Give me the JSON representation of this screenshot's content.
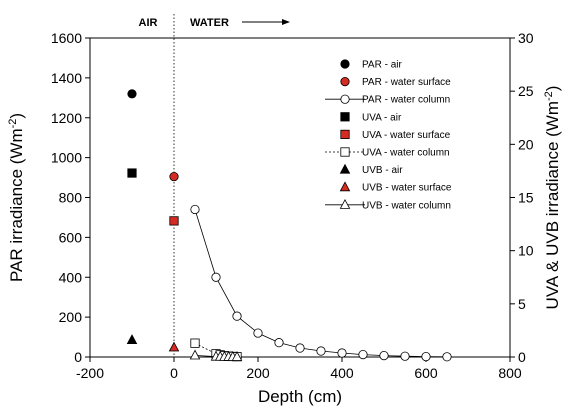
{
  "chart_data": {
    "type": "scatter",
    "xlabel": "Depth (cm)",
    "ylabel_left": "PAR irradiance (Wm-2)",
    "ylabel_right": "UVA & UVB irradiance (Wm-2)",
    "unit_superscript": "-2",
    "xlim": [
      -200,
      800
    ],
    "ylim_left": [
      0,
      1600
    ],
    "ylim_right": [
      0,
      30
    ],
    "x_ticks": [
      -200,
      0,
      200,
      400,
      600,
      800
    ],
    "y_ticks_left": [
      0,
      200,
      400,
      600,
      800,
      1000,
      1200,
      1400,
      1600
    ],
    "y_ticks_right": [
      0,
      5,
      10,
      15,
      20,
      25,
      30
    ],
    "region_labels": {
      "air": "AIR",
      "water": "WATER"
    },
    "water_surface_line_x": 0,
    "legend_position": "top-right",
    "grid": false,
    "colors": {
      "red": "#d42b23",
      "black": "#000000"
    },
    "series": [
      {
        "name": "PAR - air",
        "axis": "left",
        "marker": "circle",
        "fill": "black",
        "line": false,
        "points": [
          [
            -100,
            1320
          ]
        ]
      },
      {
        "name": "PAR - water surface",
        "axis": "left",
        "marker": "circle",
        "fill": "red",
        "line": false,
        "points": [
          [
            0,
            905
          ]
        ]
      },
      {
        "name": "PAR - water column",
        "axis": "left",
        "marker": "circle",
        "fill": "white",
        "line": true,
        "dashed": false,
        "points": [
          [
            50,
            740
          ],
          [
            100,
            400
          ],
          [
            150,
            205
          ],
          [
            200,
            120
          ],
          [
            250,
            72
          ],
          [
            300,
            45
          ],
          [
            350,
            30
          ],
          [
            400,
            20
          ],
          [
            450,
            12
          ],
          [
            500,
            7
          ],
          [
            550,
            4
          ],
          [
            600,
            2
          ],
          [
            650,
            1
          ]
        ]
      },
      {
        "name": "UVA - air",
        "axis": "right",
        "marker": "square",
        "fill": "black",
        "line": false,
        "points": [
          [
            -100,
            17.3
          ]
        ]
      },
      {
        "name": "UVA - water surface",
        "axis": "right",
        "marker": "square",
        "fill": "red",
        "line": false,
        "points": [
          [
            0,
            12.8
          ]
        ]
      },
      {
        "name": "UVA - water column",
        "axis": "right",
        "marker": "square",
        "fill": "white",
        "line": true,
        "dashed": true,
        "points": [
          [
            50,
            1.3
          ],
          [
            100,
            0.3
          ],
          [
            110,
            0.2
          ],
          [
            120,
            0.12
          ],
          [
            130,
            0.08
          ],
          [
            140,
            0.05
          ],
          [
            150,
            0.03
          ]
        ]
      },
      {
        "name": "UVB - air",
        "axis": "right",
        "marker": "triangle",
        "fill": "black",
        "line": false,
        "points": [
          [
            -100,
            1.6
          ]
        ]
      },
      {
        "name": "UVB - water surface",
        "axis": "right",
        "marker": "triangle",
        "fill": "red",
        "line": false,
        "points": [
          [
            0,
            0.9
          ]
        ]
      },
      {
        "name": "UVB - water column",
        "axis": "right",
        "marker": "triangle",
        "fill": "white",
        "line": true,
        "dashed": false,
        "points": [
          [
            50,
            0.15
          ],
          [
            100,
            0.04
          ],
          [
            110,
            0.03
          ],
          [
            120,
            0.02
          ],
          [
            130,
            0.015
          ],
          [
            140,
            0.01
          ],
          [
            150,
            0.01
          ]
        ]
      }
    ]
  }
}
